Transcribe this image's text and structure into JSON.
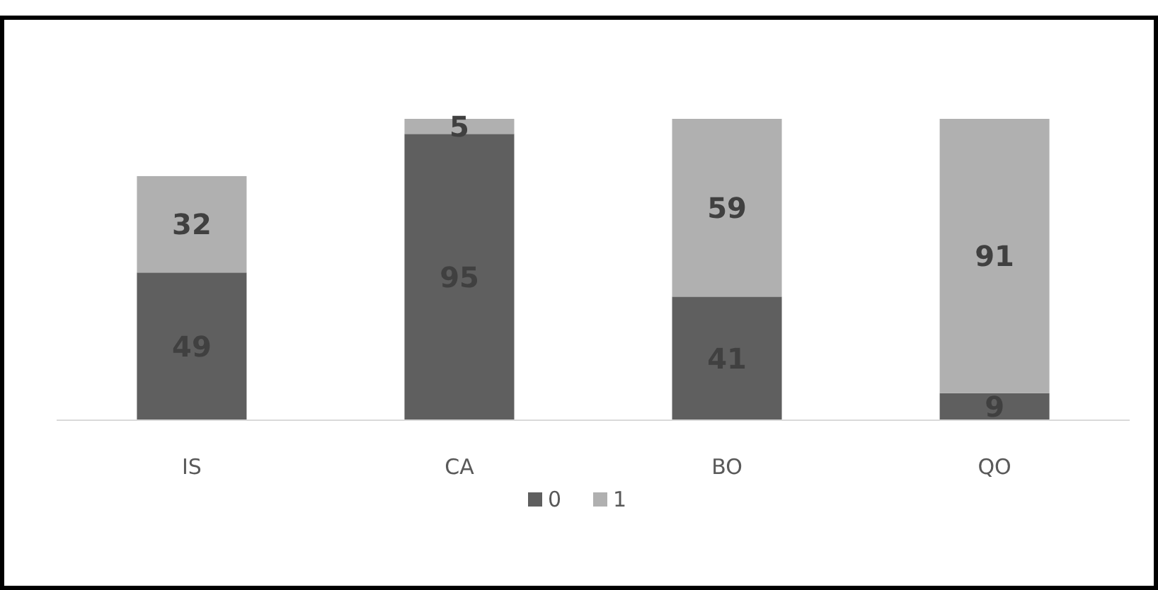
{
  "chart_data": {
    "type": "bar",
    "stacked": true,
    "categories": [
      "IS",
      "CA",
      "BO",
      "QO"
    ],
    "series": [
      {
        "name": "0",
        "color": "#5f5f5f",
        "values": [
          49,
          95,
          41,
          9
        ]
      },
      {
        "name": "1",
        "color": "#b0b0b0",
        "values": [
          32,
          5,
          59,
          91
        ]
      }
    ],
    "data_labels": true,
    "legend": "bottom",
    "grid": false
  }
}
